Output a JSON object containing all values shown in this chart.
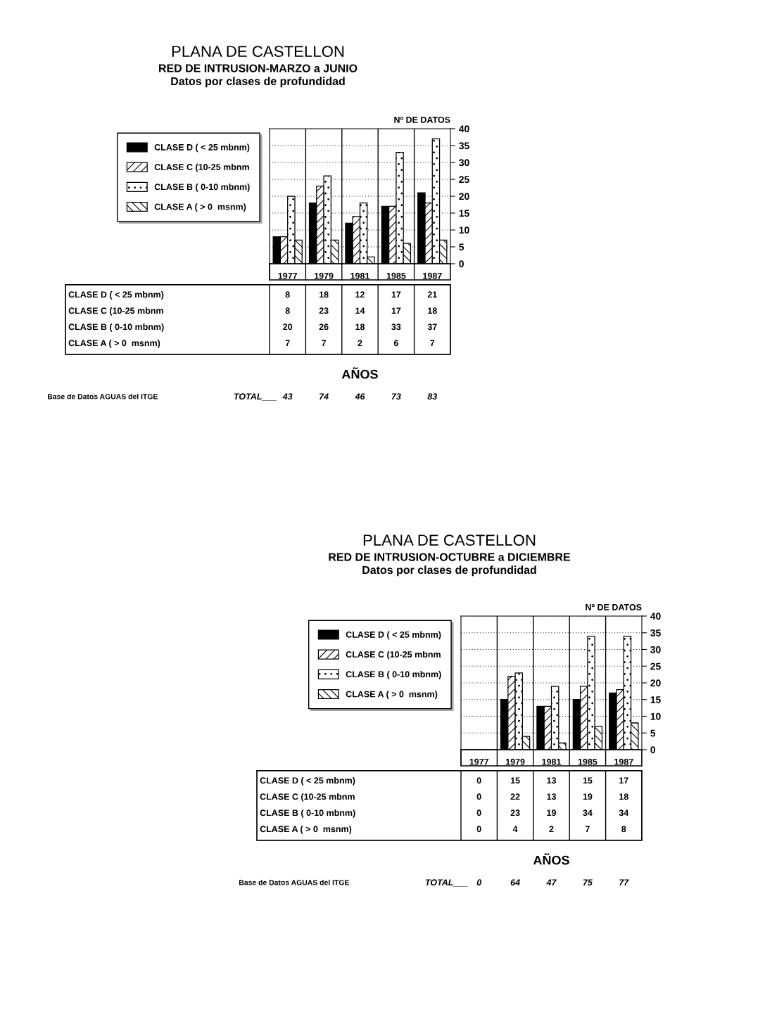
{
  "chart_data": [
    {
      "type": "bar",
      "title": "PLANA DE CASTELLON",
      "subtitle": "RED DE INTRUSION-MARZO a JUNIO\nDatos por clases de profundidad",
      "xlabel": "AÑOS",
      "ylabel": "Nº DE DATOS",
      "categories": [
        "1977",
        "1979",
        "1981",
        "1985",
        "1987"
      ],
      "series": [
        {
          "name": "CLASE D ( < 25 mbnm)",
          "color": "#000000",
          "values": [
            8,
            18,
            12,
            17,
            21
          ]
        },
        {
          "name": "CLASE C (10-25 mbnm",
          "color": "#ffffff",
          "values": [
            8,
            23,
            14,
            17,
            18
          ]
        },
        {
          "name": "CLASE B ( 0-10 mbnm)",
          "color": "#ffffff",
          "values": [
            20,
            26,
            18,
            33,
            37
          ]
        },
        {
          "name": "CLASE A ( > 0  msnm)",
          "color": "#ffffff",
          "values": [
            7,
            7,
            2,
            6,
            7
          ]
        }
      ],
      "ylim": [
        0,
        40
      ],
      "yticks": [
        0,
        5,
        10,
        15,
        20,
        25,
        30,
        35,
        40
      ],
      "grid": "y",
      "legend": "left",
      "data_labels": true,
      "annotations": [
        "TOTAL___",
        "Base de Datos AGUAS del ITGE",
        "43",
        "74",
        "46",
        "73",
        "83"
      ]
    },
    {
      "type": "bar",
      "title": "PLANA DE CASTELLON",
      "subtitle": "RED DE INTRUSION-OCTUBRE a DICIEMBRE\nDatos por clases de profundidad",
      "xlabel": "AÑOS",
      "ylabel": "Nº DE DATOS",
      "categories": [
        "1977",
        "1979",
        "1981",
        "1985",
        "1987"
      ],
      "series": [
        {
          "name": "CLASE D ( < 25 mbnm)",
          "color": "#000000",
          "values": [
            0,
            15,
            13,
            15,
            17
          ]
        },
        {
          "name": "CLASE C (10-25 mbnm",
          "color": "#ffffff",
          "values": [
            0,
            22,
            13,
            19,
            18
          ]
        },
        {
          "name": "CLASE B ( 0-10 mbnm)",
          "color": "#ffffff",
          "values": [
            0,
            23,
            19,
            34,
            34
          ]
        },
        {
          "name": "CLASE A ( > 0  msnm)",
          "color": "#ffffff",
          "values": [
            0,
            4,
            2,
            7,
            8
          ]
        }
      ],
      "ylim": [
        0,
        40
      ],
      "yticks": [
        0,
        5,
        10,
        15,
        20,
        25,
        30,
        35,
        40
      ],
      "grid": "y",
      "legend": "left",
      "data_labels": true,
      "annotations": [
        "TOTAL___",
        "Base de Datos AGUAS del ITGE",
        "0",
        "64",
        "47",
        "75",
        "77"
      ]
    }
  ]
}
